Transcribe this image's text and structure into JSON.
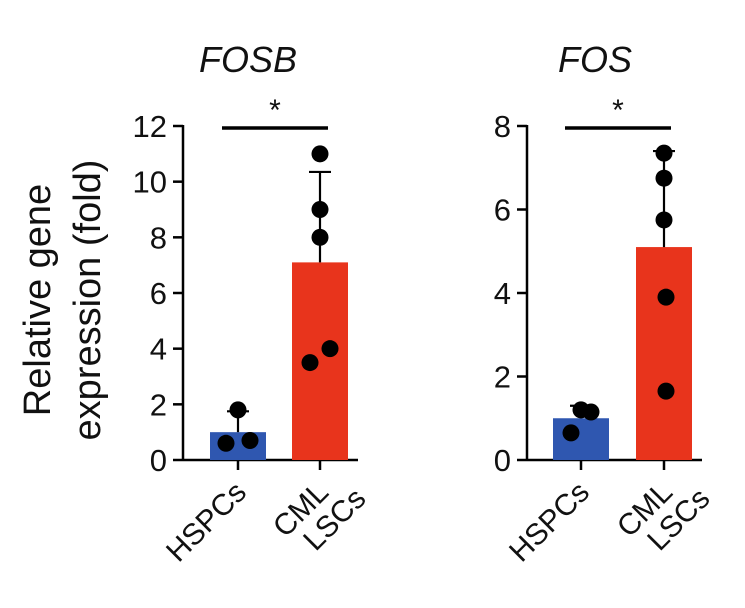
{
  "y_axis_label_line1": "Relative gene",
  "y_axis_label_line2": "expression (fold)",
  "colors": {
    "hspc": "#2f57b0",
    "lsc": "#e8341c",
    "ink": "#000000"
  },
  "chart_data": [
    {
      "type": "bar",
      "title": "FOSB",
      "ylabel": "Relative gene expression (fold)",
      "ylim": [
        0,
        12
      ],
      "yticks": [
        0,
        2,
        4,
        6,
        8,
        10,
        12
      ],
      "categories": [
        {
          "line1": "HSPCs",
          "line2": ""
        },
        {
          "line1": "CML",
          "line2": "LSCs"
        }
      ],
      "values": [
        1.0,
        7.1
      ],
      "errors": [
        0.75,
        3.25
      ],
      "points": [
        [
          0.6,
          0.7,
          1.8
        ],
        [
          3.5,
          4.0,
          8.0,
          9.0,
          11.0
        ]
      ],
      "significance": "*"
    },
    {
      "type": "bar",
      "title": "FOS",
      "ylabel": "Relative gene expression (fold)",
      "ylim": [
        0,
        8
      ],
      "yticks": [
        0,
        2,
        4,
        6,
        8
      ],
      "categories": [
        {
          "line1": "HSPCs",
          "line2": ""
        },
        {
          "line1": "CML",
          "line2": "LSCs"
        }
      ],
      "values": [
        1.0,
        5.1
      ],
      "errors": [
        0.3,
        2.3
      ],
      "points": [
        [
          0.65,
          1.15,
          1.2
        ],
        [
          1.65,
          3.9,
          5.75,
          6.75,
          7.35
        ]
      ],
      "significance": "*"
    }
  ]
}
